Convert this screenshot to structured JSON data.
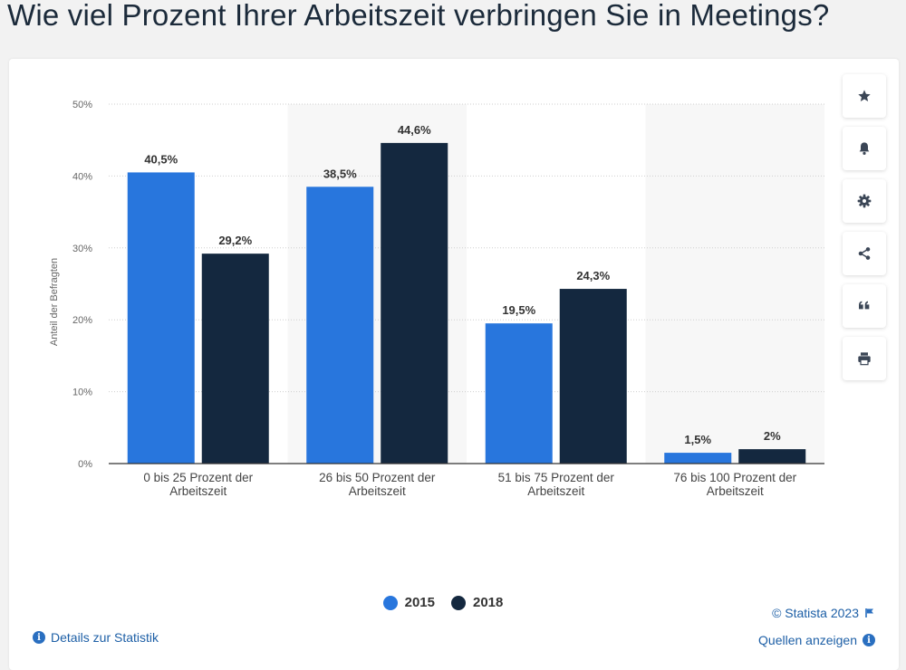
{
  "page": {
    "title": "Wie viel Prozent Ihrer Arbeitszeit verbringen Sie in Meetings?"
  },
  "colors": {
    "series_2015": "#2876dd",
    "series_2018": "#14283f",
    "link": "#1d5fa6"
  },
  "toolbar": {
    "items": [
      {
        "icon": "star-icon"
      },
      {
        "icon": "bell-icon"
      },
      {
        "icon": "gear-icon"
      },
      {
        "icon": "share-icon"
      },
      {
        "icon": "quote-icon"
      },
      {
        "icon": "print-icon"
      }
    ]
  },
  "footer": {
    "details_link": "Details zur Statistik",
    "copyright": "© Statista 2023",
    "sources_link": "Quellen anzeigen"
  },
  "chart_data": {
    "type": "bar",
    "title": "Wie viel Prozent Ihrer Arbeitszeit verbringen Sie in Meetings?",
    "xlabel": "",
    "ylabel": "Anteil der Befragten",
    "ylim": [
      0,
      50
    ],
    "yticks": [
      "0%",
      "10%",
      "20%",
      "30%",
      "40%",
      "50%"
    ],
    "ytick_values": [
      0,
      10,
      20,
      30,
      40,
      50
    ],
    "grid": true,
    "legend_position": "bottom-center",
    "categories": [
      [
        "0 bis 25 Prozent der",
        "Arbeitszeit"
      ],
      [
        "26 bis 50 Prozent der",
        "Arbeitszeit"
      ],
      [
        "51 bis 75 Prozent der",
        "Arbeitszeit"
      ],
      [
        "76 bis 100 Prozent der",
        "Arbeitszeit"
      ]
    ],
    "series": [
      {
        "name": "2015",
        "values": [
          40.5,
          38.5,
          19.5,
          1.5
        ],
        "labels": [
          "40,5%",
          "38,5%",
          "19,5%",
          "1,5%"
        ]
      },
      {
        "name": "2018",
        "values": [
          29.2,
          44.6,
          24.3,
          2
        ],
        "labels": [
          "29,2%",
          "44,6%",
          "24,3%",
          "2%"
        ]
      }
    ]
  }
}
